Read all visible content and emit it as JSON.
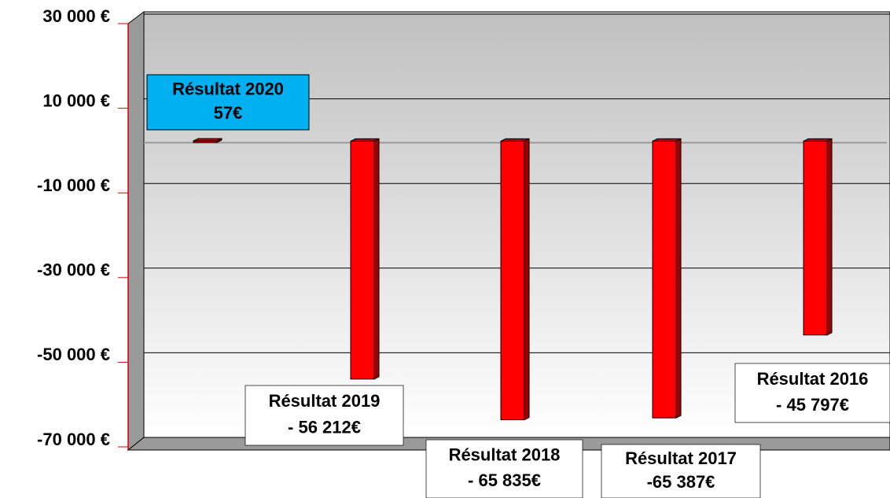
{
  "chart_data": {
    "type": "bar",
    "categories": [
      "Résultat 2020",
      "Résultat 2019",
      "Résultat 2018",
      "Résultat 2017",
      "Résultat 2016"
    ],
    "values": [
      57,
      -56212,
      -65835,
      -65387,
      -45797
    ],
    "value_labels": [
      "57€",
      "- 56 212€",
      "- 65 835€",
      "-65 387€",
      "- 45 797€"
    ],
    "color": "#ff0000",
    "ylim": [
      -70000,
      30000
    ],
    "yticks": [
      {
        "value": 30000,
        "label": "30 000 €"
      },
      {
        "value": 10000,
        "label": "10 000 €"
      },
      {
        "value": -10000,
        "label": "-10 000 €"
      },
      {
        "value": -30000,
        "label": "-30 000 €"
      },
      {
        "value": -50000,
        "label": "-50 000 €"
      },
      {
        "value": -70000,
        "label": "-70 000 €"
      }
    ],
    "grid": true
  }
}
